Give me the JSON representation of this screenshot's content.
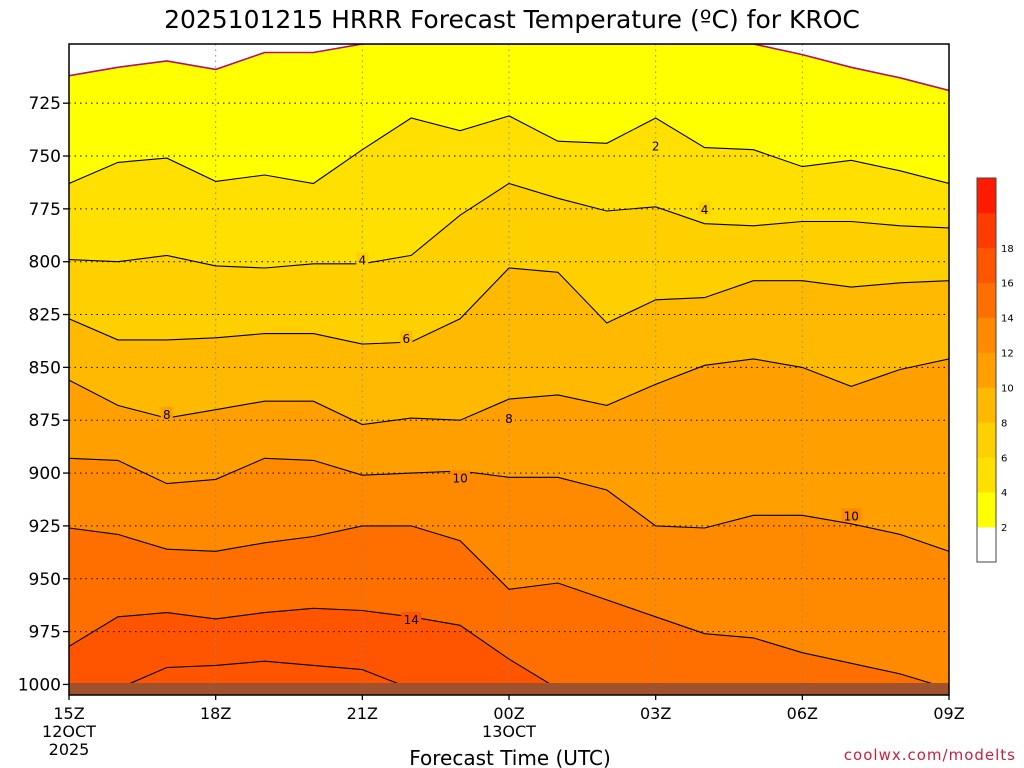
{
  "chart_data": {
    "type": "filled-contour",
    "title": "2025101215 HRRR Forecast Temperature (ºC) for KROC",
    "xlabel": "Forecast Time (UTC)",
    "ylabel": "",
    "x_ticks": [
      {
        "label": "15Z",
        "sub1": "12OCT",
        "sub2": "2025"
      },
      {
        "label": "18Z",
        "sub1": "",
        "sub2": ""
      },
      {
        "label": "21Z",
        "sub1": "",
        "sub2": ""
      },
      {
        "label": "00Z",
        "sub1": "13OCT",
        "sub2": ""
      },
      {
        "label": "03Z",
        "sub1": "",
        "sub2": ""
      },
      {
        "label": "06Z",
        "sub1": "",
        "sub2": ""
      },
      {
        "label": "09Z",
        "sub1": "",
        "sub2": ""
      }
    ],
    "x_range_hours": [
      0,
      18
    ],
    "y_range_hPa": [
      1005,
      697
    ],
    "y_ticks": [
      "725",
      "750",
      "775",
      "800",
      "825",
      "850",
      "875",
      "900",
      "925",
      "950",
      "975",
      "1000"
    ],
    "y_tick_values": [
      725,
      750,
      775,
      800,
      825,
      850,
      875,
      900,
      925,
      950,
      975,
      1000
    ],
    "grid": "dotted",
    "colorbar": {
      "position": "right",
      "ticks": [
        "2",
        "4",
        "6",
        "8",
        "10",
        "12",
        "14",
        "16",
        "18"
      ],
      "tick_values": [
        2,
        4,
        6,
        8,
        10,
        12,
        14,
        16,
        18
      ],
      "levels": [
        0,
        2,
        4,
        6,
        8,
        10,
        12,
        14,
        16,
        18,
        20
      ],
      "colors": [
        "#ffffff",
        "#ffff00",
        "#ffe000",
        "#ffd000",
        "#ffba00",
        "#ffa000",
        "#ff8a00",
        "#ff6f00",
        "#ff5400",
        "#ff3c00",
        "#ff1a00"
      ]
    },
    "hours": [
      0,
      1,
      2,
      3,
      4,
      5,
      6,
      7,
      8,
      9,
      10,
      11,
      12,
      13,
      14,
      15,
      16,
      17,
      18
    ],
    "contours": [
      {
        "level": 0,
        "pressures": [
          712,
          708,
          705,
          709,
          701,
          701,
          697,
          697,
          697,
          697,
          697,
          697,
          697,
          697,
          697,
          702,
          708,
          713,
          719
        ]
      },
      {
        "level": 2,
        "pressures": [
          763,
          753,
          751,
          762,
          759,
          763,
          747,
          732,
          738,
          731,
          743,
          744,
          732,
          746,
          747,
          755,
          752,
          757,
          763
        ]
      },
      {
        "level": 4,
        "pressures": [
          799,
          800,
          797,
          802,
          803,
          801,
          801,
          797,
          778,
          763,
          770,
          776,
          774,
          782,
          783,
          781,
          781,
          783,
          784
        ]
      },
      {
        "level": 6,
        "pressures": [
          827,
          837,
          837,
          836,
          834,
          834,
          839,
          838,
          827,
          803,
          805,
          829,
          818,
          817,
          809,
          809,
          812,
          810,
          809
        ]
      },
      {
        "level": 8,
        "pressures": [
          856,
          868,
          874,
          870,
          866,
          866,
          877,
          874,
          875,
          865,
          863,
          868,
          858,
          849,
          846,
          850,
          859,
          851,
          846
        ]
      },
      {
        "level": 10,
        "pressures": [
          893,
          894,
          905,
          903,
          893,
          894,
          901,
          900,
          899,
          902,
          902,
          908,
          925,
          926,
          920,
          920,
          924,
          929,
          937
        ]
      },
      {
        "level": 12,
        "pressures": [
          926,
          929,
          936,
          937,
          933,
          930,
          925,
          925,
          932,
          955,
          952,
          960,
          968,
          976,
          978,
          985,
          990,
          995,
          1002
        ]
      },
      {
        "level": 14,
        "pressures": [
          982,
          968,
          966,
          969,
          966,
          964,
          965,
          968,
          972,
          988,
          1002,
          1002,
          1002,
          1002,
          1002,
          1002,
          1002,
          1002,
          1002
        ]
      },
      {
        "level": 16,
        "pressures": [
          1002,
          1002,
          992,
          991,
          989,
          991,
          993,
          1002,
          1002,
          1002,
          1002,
          1002,
          1002,
          1002,
          1002,
          1002,
          1002,
          1002,
          1002
        ]
      }
    ],
    "contour_labels": [
      {
        "text": "2",
        "hour": 12.0,
        "p": 745
      },
      {
        "text": "4",
        "hour": 13.0,
        "p": 775
      },
      {
        "text": "4",
        "hour": 6.0,
        "p": 799
      },
      {
        "text": "6",
        "hour": 6.9,
        "p": 836
      },
      {
        "text": "8",
        "hour": 2.0,
        "p": 872
      },
      {
        "text": "8",
        "hour": 9.0,
        "p": 874
      },
      {
        "text": "10",
        "hour": 8.0,
        "p": 902
      },
      {
        "text": "10",
        "hour": 16.0,
        "p": 920
      },
      {
        "text": "14",
        "hour": 7.0,
        "p": 969
      }
    ]
  },
  "credit": "coolwx.com/modelts"
}
